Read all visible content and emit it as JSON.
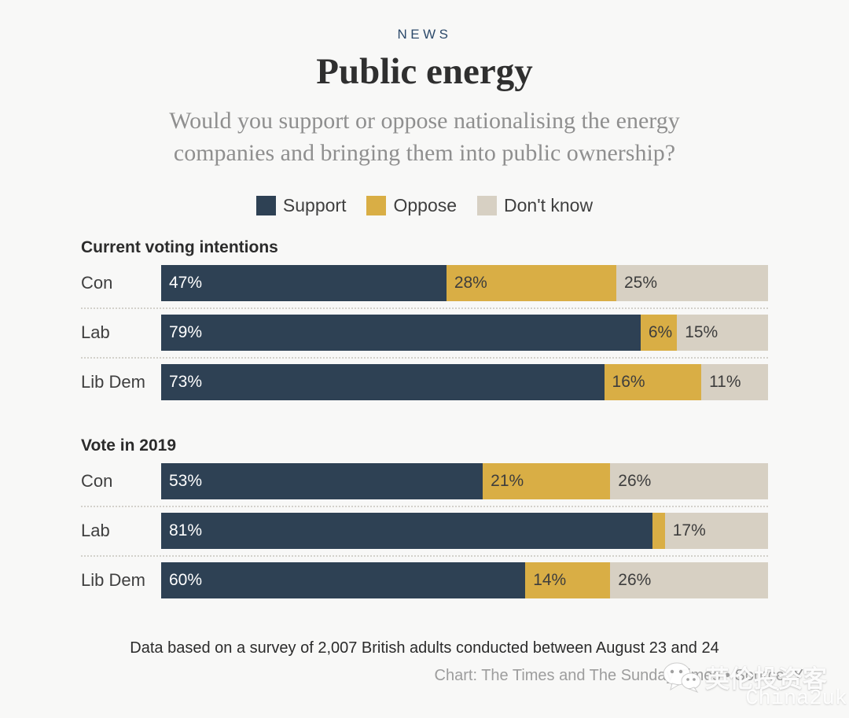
{
  "header": {
    "kicker": "NEWS",
    "title": "Public energy",
    "subtitle": "Would you support or oppose nationalising the energy companies and bringing them into public ownership?"
  },
  "legend": [
    {
      "label": "Support",
      "color": "#2e4154"
    },
    {
      "label": "Oppose",
      "color": "#d9ae45"
    },
    {
      "label": "Don't know",
      "color": "#d7d0c3"
    }
  ],
  "chart_data": {
    "type": "bar",
    "variant": "horizontal-stacked",
    "unit": "%",
    "xlim": [
      0,
      100
    ],
    "series": [
      "Support",
      "Oppose",
      "Don't know"
    ],
    "colors": [
      "#2e4154",
      "#d9ae45",
      "#d7d0c3"
    ],
    "groups": [
      {
        "title": "Current voting intentions",
        "rows": [
          {
            "label": "Con",
            "values": [
              47,
              28,
              25
            ],
            "labels": [
              "47%",
              "28%",
              "25%"
            ]
          },
          {
            "label": "Lab",
            "values": [
              79,
              6,
              15
            ],
            "labels": [
              "79%",
              "6%",
              "15%"
            ]
          },
          {
            "label": "Lib Dem",
            "values": [
              73,
              16,
              11
            ],
            "labels": [
              "73%",
              "16%",
              "11%"
            ]
          }
        ]
      },
      {
        "title": "Vote in 2019",
        "rows": [
          {
            "label": "Con",
            "values": [
              53,
              21,
              26
            ],
            "labels": [
              "53%",
              "21%",
              "26%"
            ]
          },
          {
            "label": "Lab",
            "values": [
              81,
              2,
              17
            ],
            "labels": [
              "81%",
              "",
              "17%"
            ]
          },
          {
            "label": "Lib Dem",
            "values": [
              60,
              14,
              26
            ],
            "labels": [
              "60%",
              "14%",
              "26%"
            ]
          }
        ]
      }
    ]
  },
  "footer": {
    "note": "Data based on a survey of 2,007 British adults conducted between August 23 and 24",
    "credit": "Chart: The Times and The Sunday Times • Source: Y",
    "watermark_name": "英伦投资客",
    "watermark_handle": "China2uk"
  }
}
